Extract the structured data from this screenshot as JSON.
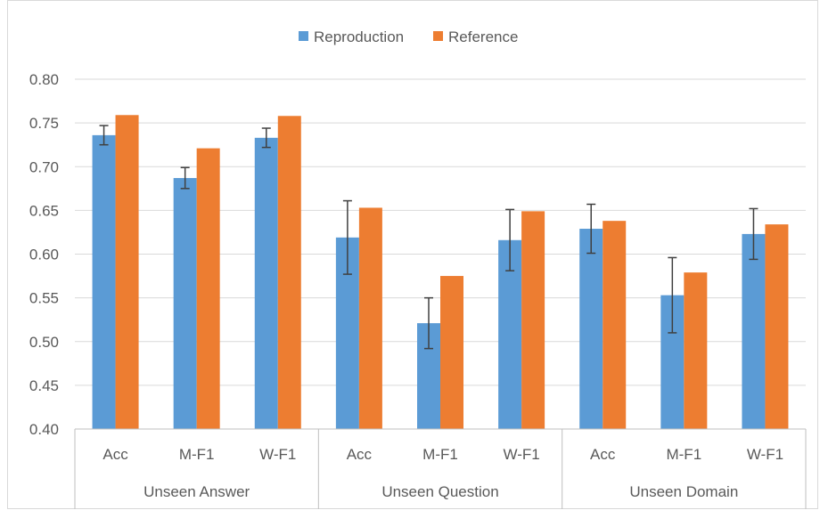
{
  "chart_data": {
    "type": "bar",
    "groups": [
      {
        "name": "Unseen Answer",
        "categories": [
          "Acc",
          "M-F1",
          "W-F1"
        ]
      },
      {
        "name": "Unseen Question",
        "categories": [
          "Acc",
          "M-F1",
          "W-F1"
        ]
      },
      {
        "name": "Unseen Domain",
        "categories": [
          "Acc",
          "M-F1",
          "W-F1"
        ]
      }
    ],
    "categories": [
      "Acc",
      "M-F1",
      "W-F1",
      "Acc",
      "M-F1",
      "W-F1",
      "Acc",
      "M-F1",
      "W-F1"
    ],
    "series": [
      {
        "name": "Reproduction",
        "color": "#5b9bd5",
        "values": [
          0.736,
          0.687,
          0.733,
          0.619,
          0.521,
          0.616,
          0.629,
          0.553,
          0.623
        ],
        "error": [
          0.011,
          0.012,
          0.011,
          0.042,
          0.029,
          0.035,
          0.028,
          0.043,
          0.029
        ]
      },
      {
        "name": "Reference",
        "color": "#ed7d31",
        "values": [
          0.759,
          0.721,
          0.758,
          0.653,
          0.575,
          0.649,
          0.638,
          0.579,
          0.634
        ]
      }
    ],
    "ylim": [
      0.4,
      0.8
    ],
    "yticks": [
      "0.80",
      "0.75",
      "0.70",
      "0.65",
      "0.60",
      "0.55",
      "0.50",
      "0.45",
      "0.40"
    ],
    "grid": true,
    "legend": "top-center",
    "title": "",
    "xlabel": "",
    "ylabel": ""
  }
}
